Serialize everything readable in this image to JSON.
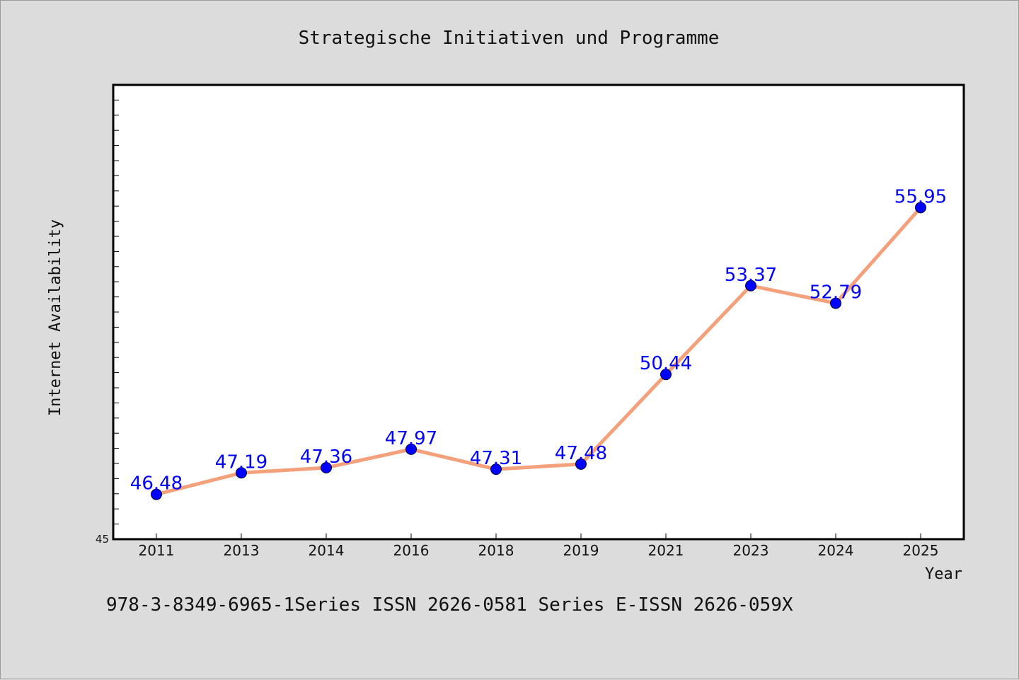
{
  "chart_data": {
    "type": "line",
    "title": "Strategische Initiativen und Programme",
    "xlabel": "Year",
    "ylabel": "Internet Availability",
    "categories": [
      "2011",
      "2013",
      "2014",
      "2016",
      "2018",
      "2019",
      "2021",
      "2023",
      "2024",
      "2025"
    ],
    "series": [
      {
        "values": [
          46.48,
          47.19,
          47.36,
          47.97,
          47.31,
          47.48,
          50.44,
          53.37,
          52.79,
          55.95
        ],
        "labels": [
          "46.48",
          "47.19",
          "47.36",
          "47.97",
          "47.31",
          "47.48",
          "50.44",
          "53.37",
          "52.79",
          "55.95"
        ]
      }
    ],
    "ylim": [
      45,
      60
    ],
    "y_tick_labels": [
      "45"
    ],
    "grid": false,
    "line_color": "#f4a07a",
    "marker_color": "#0000ff",
    "label_color": "#0000ff"
  },
  "footer": {
    "isbn_text": "978-3-8349-6965-1Series ISSN 2626-0581 Series E-ISSN 2626-059X"
  }
}
